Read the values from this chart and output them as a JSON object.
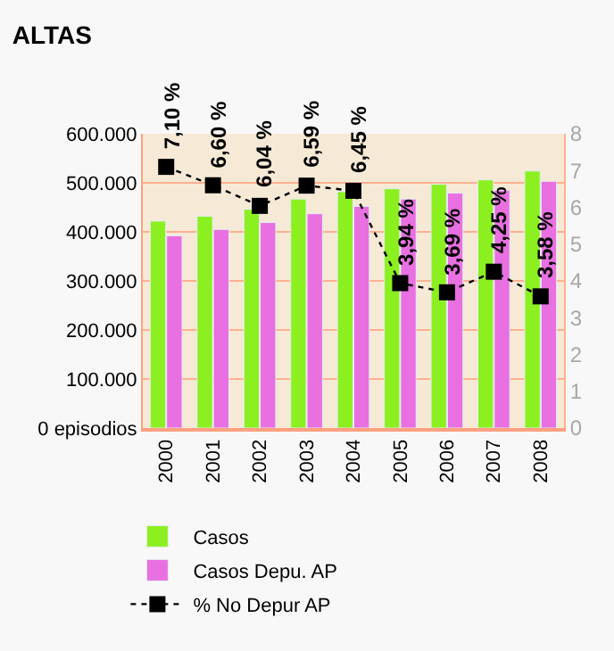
{
  "chart_data": {
    "type": "bar",
    "title": "ALTAS",
    "categories": [
      "2000",
      "2001",
      "2002",
      "2003",
      "2004",
      "2005",
      "2006",
      "2007",
      "2008"
    ],
    "series": [
      {
        "name": "Casos",
        "color": "#8cf020",
        "values": [
          422000,
          432000,
          446000,
          467000,
          482000,
          488000,
          497000,
          506000,
          524000
        ]
      },
      {
        "name": "Casos Depu. AP",
        "color": "#e870e0",
        "values": [
          392000,
          405000,
          419000,
          437000,
          452000,
          467000,
          479000,
          485000,
          503000
        ]
      },
      {
        "name": "% No Depur AP",
        "type": "line",
        "axis": "y2",
        "color": "#000000",
        "marker": "square",
        "line_style": "dotted",
        "values": [
          7.1,
          6.6,
          6.04,
          6.59,
          6.45,
          3.94,
          3.69,
          4.25,
          3.58
        ],
        "value_labels": [
          "7,10 %",
          "6,60 %",
          "6,04 %",
          "6,59 %",
          "6,45 %",
          "3,94 %",
          "3,69 %",
          "4,25 %",
          "3,58 %"
        ]
      }
    ],
    "ylim": [
      0,
      600000
    ],
    "yticks": [
      {
        "value": 0,
        "label": "0 episodios"
      },
      {
        "value": 100000,
        "label": "100.000"
      },
      {
        "value": 200000,
        "label": "200.000"
      },
      {
        "value": 300000,
        "label": "300.000"
      },
      {
        "value": 400000,
        "label": "400.000"
      },
      {
        "value": 500000,
        "label": "500.000"
      },
      {
        "value": 600000,
        "label": "600.000"
      }
    ],
    "y2lim": [
      0,
      8
    ],
    "y2ticks": [
      0,
      1,
      2,
      3,
      4,
      5,
      6,
      7,
      8
    ],
    "grid": "y",
    "legend": "bottom"
  }
}
